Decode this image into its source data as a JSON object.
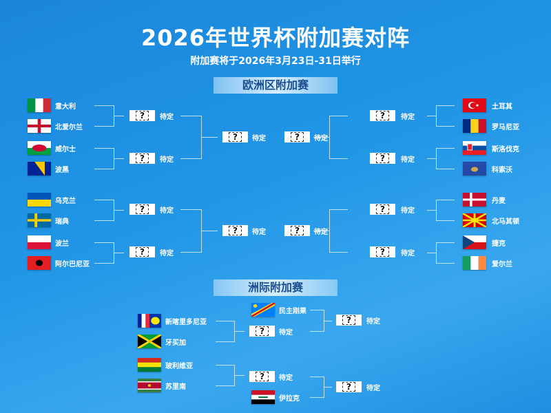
{
  "header": {
    "title": "2026年世界杯附加赛对阵",
    "subtitle": "附加赛将于2026年3月23日-31日举行"
  },
  "placeholder": {
    "box": "?",
    "label": "待定"
  },
  "europe": {
    "title": "欧洲区附加赛",
    "left": [
      {
        "name": "意大利",
        "flag": "italy"
      },
      {
        "name": "北爱尔兰",
        "flag": "northern-ireland"
      },
      {
        "name": "威尔士",
        "flag": "wales"
      },
      {
        "name": "波黑",
        "flag": "bosnia"
      },
      {
        "name": "乌克兰",
        "flag": "ukraine"
      },
      {
        "name": "瑞典",
        "flag": "sweden"
      },
      {
        "name": "波兰",
        "flag": "poland"
      },
      {
        "name": "阿尔巴尼亚",
        "flag": "albania"
      }
    ],
    "right": [
      {
        "name": "土耳其",
        "flag": "turkey"
      },
      {
        "name": "罗马尼亚",
        "flag": "romania"
      },
      {
        "name": "斯洛伐克",
        "flag": "slovakia"
      },
      {
        "name": "科索沃",
        "flag": "kosovo"
      },
      {
        "name": "丹麦",
        "flag": "denmark"
      },
      {
        "name": "北马其顿",
        "flag": "north-macedonia"
      },
      {
        "name": "捷克",
        "flag": "czechia"
      },
      {
        "name": "爱尔兰",
        "flag": "ireland"
      }
    ]
  },
  "intercontinental": {
    "title": "洲际附加赛",
    "teams": [
      {
        "name": "新喀里多尼亚",
        "flag": "new-caledonia"
      },
      {
        "name": "牙买加",
        "flag": "jamaica"
      },
      {
        "name": "玻利维亚",
        "flag": "bolivia"
      },
      {
        "name": "苏里南",
        "flag": "suriname"
      }
    ],
    "seeded": [
      {
        "name": "民主刚果",
        "flag": "dr-congo"
      },
      {
        "name": "伊拉克",
        "flag": "iraq"
      }
    ]
  }
}
